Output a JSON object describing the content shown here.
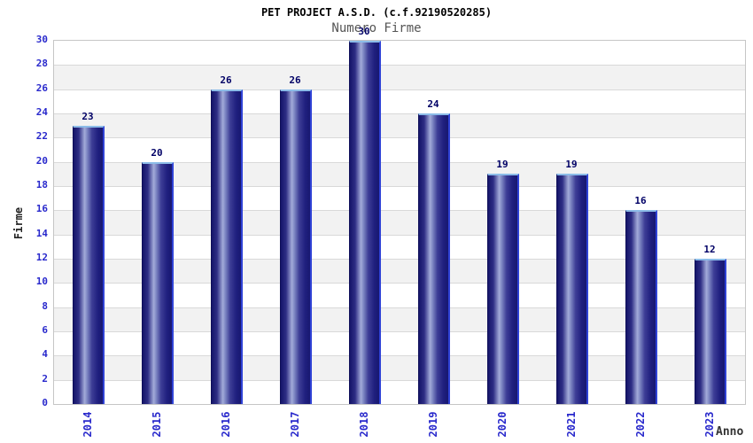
{
  "header": {
    "title": "PET PROJECT A.S.D. (c.f.92190520285)",
    "subtitle": "Numero Firme"
  },
  "chart_data": {
    "type": "bar",
    "title": "PET PROJECT A.S.D. (c.f.92190520285)",
    "subtitle": "Numero Firme",
    "categories": [
      "2014",
      "2015",
      "2016",
      "2017",
      "2018",
      "2019",
      "2020",
      "2021",
      "2022",
      "2023"
    ],
    "values": [
      23,
      20,
      26,
      26,
      30,
      24,
      19,
      19,
      16,
      12
    ],
    "xlabel": "Anno",
    "ylabel": "Firme",
    "ylim": [
      0,
      30
    ],
    "ytick_step": 2,
    "yticks": [
      0,
      2,
      4,
      6,
      8,
      10,
      12,
      14,
      16,
      18,
      20,
      22,
      24,
      26,
      28,
      30
    ],
    "grid": "horizontal gridlines with alternating gray/white bands every 2 units",
    "legend": "none",
    "bar_labels_shown": true,
    "x_tick_rotation_degrees": -90,
    "colors": {
      "background": "#ffffff",
      "band_gray": "#f2f2f2",
      "gridline": "#d9d9d9",
      "plot_border": "#c6c6c6",
      "bar_gradient_dark": "#15156a",
      "bar_gradient_light": "#a3abd9",
      "bar_border_right": "#2f42d6",
      "bar_border_top": "#8cbce8",
      "tick_label_blue": "#2929cc",
      "data_label_navy": "#000066",
      "title_color": "#000000",
      "subtitle_color": "#555555",
      "axis_title_color": "#222222"
    }
  }
}
